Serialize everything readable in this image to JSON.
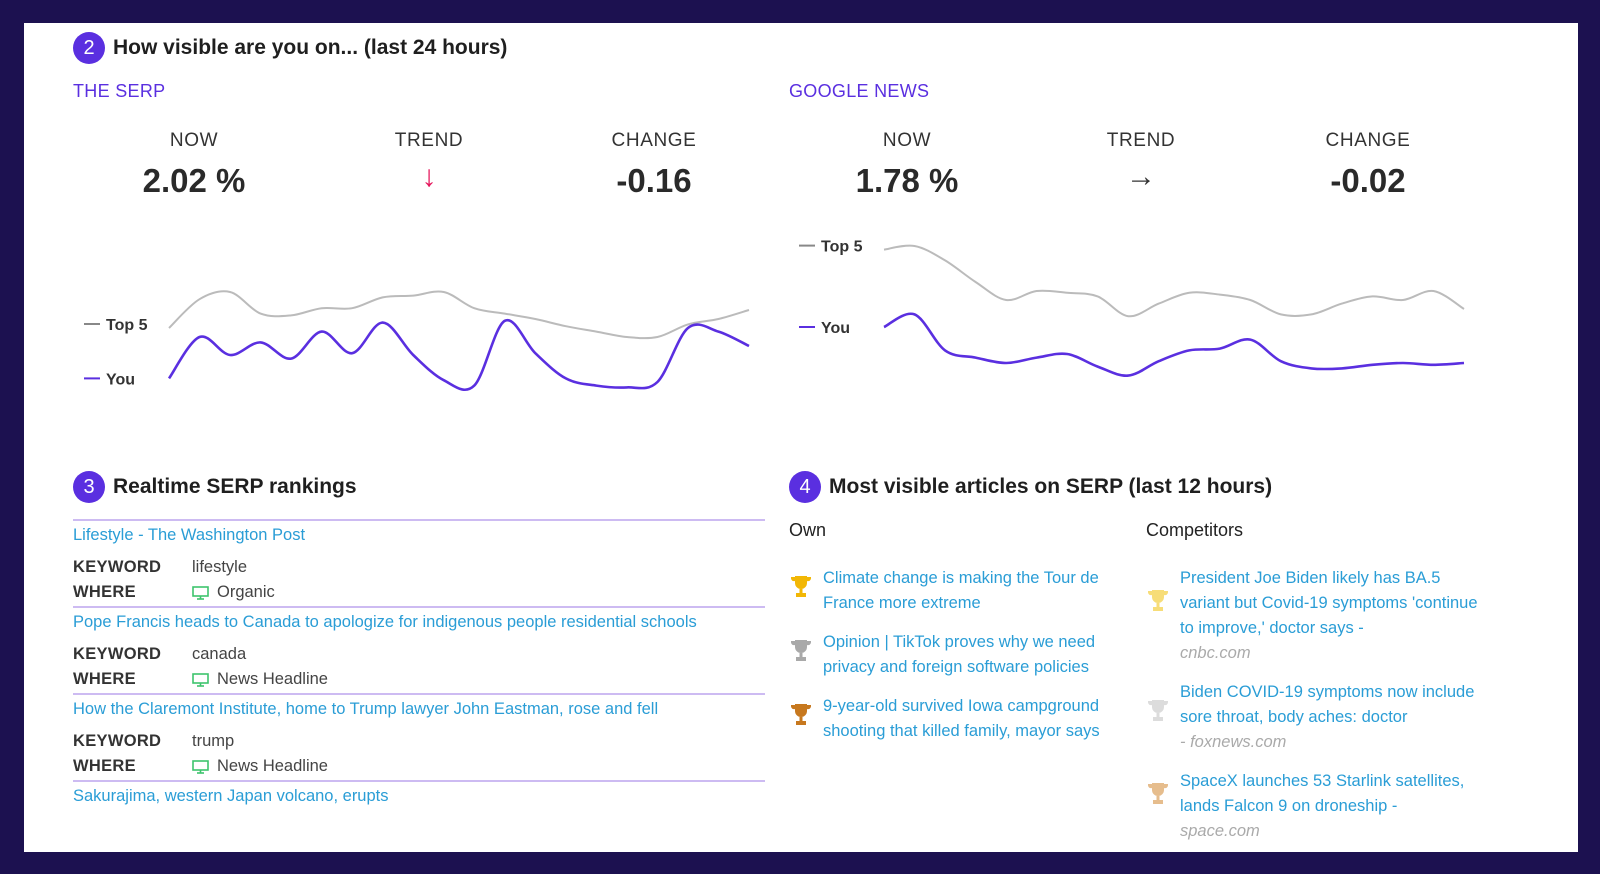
{
  "visibility": {
    "number": "2",
    "title": "How visible are you on... (last 24 hours)",
    "serp": {
      "title": "THE SERP",
      "now_label": "NOW",
      "now_value": "2.02 %",
      "trend_label": "TREND",
      "trend_arrow": "↓",
      "trend_color": "#e5175c",
      "change_label": "CHANGE",
      "change_value": "-0.16"
    },
    "news": {
      "title": "GOOGLE NEWS",
      "now_label": "NOW",
      "now_value": "1.78 %",
      "trend_label": "TREND",
      "trend_arrow": "→",
      "trend_color": "#333333",
      "change_label": "CHANGE",
      "change_value": "-0.02"
    }
  },
  "chart_data": [
    {
      "type": "line",
      "title": "THE SERP",
      "series": [
        {
          "name": "Top 5",
          "color": "#bbbbbb",
          "values": [
            50,
            66,
            70,
            58,
            57,
            61,
            61,
            67,
            68,
            70,
            61,
            58,
            55,
            51,
            48,
            45,
            45,
            52,
            55,
            60
          ]
        },
        {
          "name": "You",
          "color": "#5a2fe0",
          "values": [
            22,
            45,
            35,
            42,
            33,
            48,
            36,
            53,
            35,
            21,
            18,
            54,
            36,
            22,
            18,
            17,
            20,
            50,
            48,
            40
          ]
        }
      ]
    },
    {
      "type": "line",
      "title": "GOOGLE NEWS",
      "series": [
        {
          "name": "Top 5",
          "color": "#bbbbbb",
          "values": [
            88,
            90,
            82,
            70,
            60,
            65,
            64,
            62,
            51,
            58,
            64,
            63,
            60,
            52,
            52,
            58,
            62,
            60,
            65,
            55
          ]
        },
        {
          "name": "You",
          "color": "#5a2fe0",
          "values": [
            45,
            52,
            32,
            28,
            25,
            28,
            30,
            23,
            18,
            26,
            32,
            33,
            38,
            26,
            22,
            22,
            24,
            25,
            24,
            25
          ]
        }
      ]
    }
  ],
  "rankings": {
    "number": "3",
    "title": "Realtime SERP rankings",
    "keyword_label": "KEYWORD",
    "where_label": "WHERE",
    "items": [
      {
        "title": "Lifestyle - The Washington Post",
        "keyword": "lifestyle",
        "where": "Organic"
      },
      {
        "title": "Pope Francis heads to Canada to apologize for indigenous people residential schools",
        "keyword": "canada",
        "where": "News Headline"
      },
      {
        "title": "How the Claremont Institute, home to Trump lawyer John Eastman, rose and fell",
        "keyword": "trump",
        "where": "News Headline"
      },
      {
        "title": "Sakurajima, western Japan volcano, erupts",
        "keyword": "",
        "where": ""
      }
    ]
  },
  "articles": {
    "number": "4",
    "title": "Most visible articles on SERP (last 12 hours)",
    "own_label": "Own",
    "competitors_label": "Competitors",
    "own": [
      {
        "title": "Climate change is making the Tour de France more extreme",
        "trophy": "gold-trophy-icon",
        "color": "#f2b705"
      },
      {
        "title": "Opinion | TikTok proves why we need privacy and foreign software policies",
        "trophy": "silver-trophy-icon",
        "color": "#a9a9a9"
      },
      {
        "title": "9-year-old survived Iowa campground shooting that killed family, mayor says",
        "trophy": "bronze-trophy-icon",
        "color": "#c7781e"
      }
    ],
    "competitors": [
      {
        "title": "President Joe Biden likely has BA.5 variant but Covid-19 symptoms 'continue to improve,' doctor says -",
        "source": "cnbc.com",
        "trophy": "gold-trophy-icon",
        "color": "#f7dd78"
      },
      {
        "title": "Biden COVID-19 symptoms now include sore throat, body aches: doctor",
        "source": "- foxnews.com",
        "trophy": "silver-trophy-icon",
        "color": "#dcdcdc"
      },
      {
        "title": "SpaceX launches 53 Starlink satellites, lands Falcon 9 on droneship -",
        "source": "space.com",
        "trophy": "bronze-trophy-icon",
        "color": "#e6bd8d"
      }
    ]
  }
}
